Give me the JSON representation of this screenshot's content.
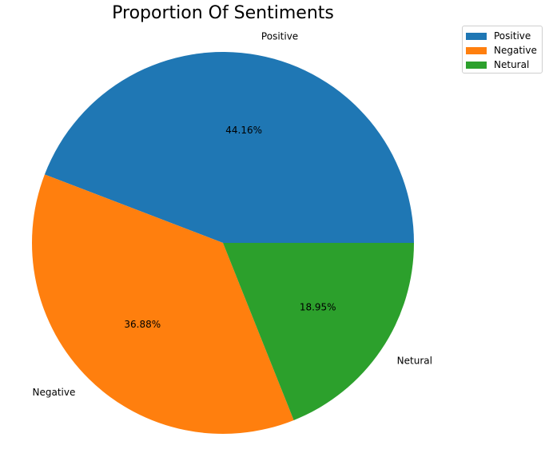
{
  "chart_data": {
    "type": "pie",
    "title": "Proportion Of Sentiments",
    "categories": [
      "Positive",
      "Negative",
      "Netural"
    ],
    "values": [
      44.16,
      36.88,
      18.95
    ],
    "autopct_labels": [
      "44.16%",
      "36.88%",
      "18.95%"
    ],
    "colors": [
      "#1f77b4",
      "#ff7f0e",
      "#2ca02c"
    ],
    "legend": {
      "placement": "upper-right-outside",
      "entries": [
        "Positive",
        "Negative",
        "Netural"
      ]
    }
  }
}
